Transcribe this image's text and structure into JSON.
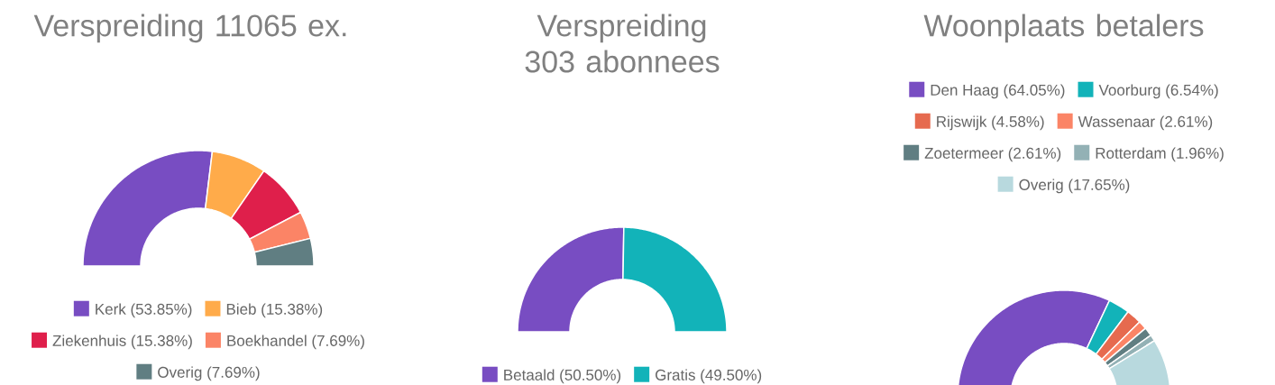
{
  "chart_data": [
    {
      "type": "donut",
      "title": "Verspreiding 11065 ex.",
      "legend": "bottom",
      "categories": [
        "Kerk (53.85%)",
        "Bieb (15.38%)",
        "Ziekenhuis (15.38%)",
        "Boekhandel (7.69%)",
        "Overig (7.69%)"
      ],
      "values": [
        53.85,
        15.38,
        15.38,
        7.69,
        7.69
      ],
      "colors": [
        "#784dc2",
        "#ffab4a",
        "#df1f4b",
        "#fb8466",
        "#607e82"
      ]
    },
    {
      "type": "donut",
      "title": "Verspreiding 303 abonnees",
      "legend": "bottom",
      "categories": [
        "Betaald (50.50%)",
        "Gratis (49.50%)"
      ],
      "values": [
        50.5,
        49.5
      ],
      "colors": [
        "#784dc2",
        "#12b3b9"
      ]
    },
    {
      "type": "donut",
      "title": "Woonplaats betalers",
      "legend": "top",
      "categories": [
        "Den Haag (64.05%)",
        "Voorburg (6.54%)",
        "Rijswijk (4.58%)",
        "Wassenaar (2.61%)",
        "Zoetermeer (2.61%)",
        "Rotterdam (1.96%)",
        "Overig (17.65%)"
      ],
      "values": [
        64.05,
        6.54,
        4.58,
        2.61,
        2.61,
        1.96,
        17.65
      ],
      "colors": [
        "#784dc2",
        "#12b3b9",
        "#e66a4f",
        "#fb8466",
        "#607e82",
        "#93b1b5",
        "#b8d9de"
      ]
    }
  ]
}
